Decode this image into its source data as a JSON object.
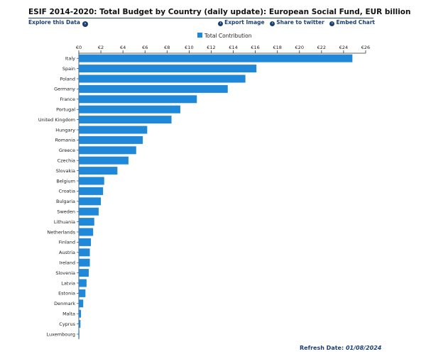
{
  "header": {
    "title": "ESIF 2014-2020: Total Budget by Country (daily update): European Social Fund, EUR billion",
    "explore_label": "Explore this Data",
    "explore_icon": "chevron-right-icon",
    "export_label": "Export Image",
    "share_label": "Share to twitter",
    "embed_label": "Embed Chart"
  },
  "footer": {
    "refresh_label": "Refresh Date:",
    "refresh_date": "01/08/2024"
  },
  "colors": {
    "bar": "#1f88d8",
    "accent": "#1c3f73"
  },
  "chart_data": {
    "type": "bar",
    "orientation": "horizontal",
    "legend": {
      "label": "Total Contribution",
      "position": "top-center"
    },
    "categories": [
      "Italy",
      "Spain",
      "Poland",
      "Germany",
      "France",
      "Portugal",
      "United Kingdom",
      "Hungary",
      "Romania",
      "Greece",
      "Czechia",
      "Slovakia",
      "Belgium",
      "Croatia",
      "Bulgaria",
      "Sweden",
      "Lithuania",
      "Netherlands",
      "Finland",
      "Austria",
      "Ireland",
      "Slovenia",
      "Latvia",
      "Estonia",
      "Denmark",
      "Malta",
      "Cyprus",
      "Luxembourg"
    ],
    "series": [
      {
        "name": "Total Contribution",
        "values": [
          24.8,
          16.1,
          15.1,
          13.5,
          10.7,
          9.2,
          8.4,
          6.2,
          5.8,
          5.2,
          4.5,
          3.5,
          2.3,
          2.2,
          2.0,
          1.8,
          1.4,
          1.3,
          1.1,
          1.0,
          1.0,
          0.9,
          0.7,
          0.6,
          0.4,
          0.2,
          0.15,
          0.05
        ]
      }
    ],
    "xlim": [
      0,
      26
    ],
    "xticks": [
      0,
      2,
      4,
      6,
      8,
      10,
      12,
      14,
      16,
      18,
      20,
      22,
      24,
      26
    ],
    "xtick_labels": [
      "€0",
      "€2",
      "€4",
      "€6",
      "€8",
      "€10",
      "€12",
      "€14",
      "€16",
      "€18",
      "€20",
      "€22",
      "€24",
      "€26"
    ],
    "xaxis_position": "top",
    "grid": false
  }
}
